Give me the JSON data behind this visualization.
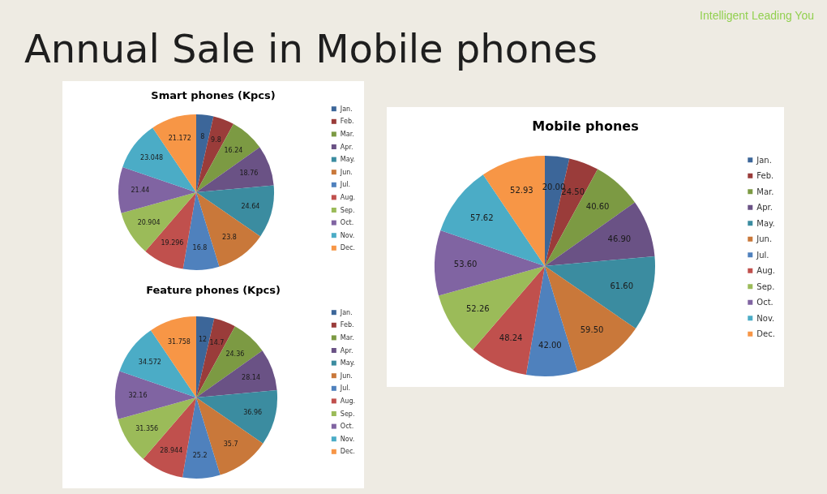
{
  "chart_data": [
    {
      "type": "pie",
      "title": "Smart phones (Kpcs)",
      "annotations": [
        "Annual Sale in Mobile phones",
        "Intelligent Leading You"
      ],
      "categories": [
        "Jan.",
        "Feb.",
        "Mar.",
        "Apr.",
        "May.",
        "Jun.",
        "Jul.",
        "Aug.",
        "Sep.",
        "Oct.",
        "Nov.",
        "Dec."
      ],
      "values": [
        8,
        9.8,
        16.24,
        18.76,
        24.64,
        23.8,
        16.8,
        19.296,
        20.904,
        21.44,
        23.048,
        21.172
      ],
      "colors": [
        "#3c6699",
        "#9a3c3a",
        "#7c9a43",
        "#6a5285",
        "#3b8ca0",
        "#c9783a",
        "#4f81bd",
        "#c0504d",
        "#9bbb59",
        "#8064a2",
        "#4bacc6",
        "#f79646"
      ],
      "data_labels": true,
      "legend": "right"
    },
    {
      "type": "pie",
      "title": "Mobile phones",
      "categories": [
        "Jan.",
        "Feb.",
        "Mar.",
        "Apr.",
        "May.",
        "Jun.",
        "Jul.",
        "Aug.",
        "Sep.",
        "Oct.",
        "Nov.",
        "Dec."
      ],
      "values": [
        20,
        24.5,
        40.6,
        46.9,
        61.6,
        59.5,
        42,
        48.24,
        52.26,
        53.6,
        57.62,
        52.93
      ],
      "value_labels": [
        "20.00",
        "24.50",
        "40.60",
        "46.90",
        "61.60",
        "59.50",
        "42.00",
        "48.24",
        "52.26",
        "53.60",
        "57.62",
        "52.93"
      ],
      "colors": [
        "#3c6699",
        "#9a3c3a",
        "#7c9a43",
        "#6a5285",
        "#3b8ca0",
        "#c9783a",
        "#4f81bd",
        "#c0504d",
        "#9bbb59",
        "#8064a2",
        "#4bacc6",
        "#f79646"
      ],
      "legend": "right"
    },
    {
      "type": "pie",
      "title": "Feature phones (Kpcs)",
      "categories": [
        "Jan.",
        "Feb.",
        "Mar.",
        "Apr.",
        "May.",
        "Jun.",
        "Jul.",
        "Aug.",
        "Sep.",
        "Oct.",
        "Nov.",
        "Dec."
      ],
      "values": [
        12,
        14.7,
        24.36,
        28.14,
        36.96,
        35.7,
        25.2,
        28.944,
        31.356,
        32.16,
        34.572,
        31.758
      ],
      "colors": [
        "#3c6699",
        "#9a3c3a",
        "#7c9a43",
        "#6a5285",
        "#3b8ca0",
        "#c9783a",
        "#4f81bd",
        "#c0504d",
        "#9bbb59",
        "#8064a2",
        "#4bacc6",
        "#f79646"
      ],
      "data_labels": true,
      "legend": "right"
    }
  ]
}
